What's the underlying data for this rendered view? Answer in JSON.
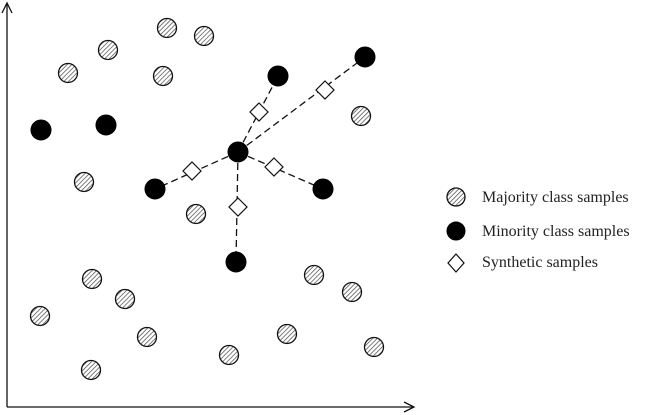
{
  "colors": {
    "ink": "#111111",
    "hatch": "#555555",
    "minority_fill": "#000000",
    "synthetic_fill": "#ffffff"
  },
  "legend": {
    "majority_label": "Majority class samples",
    "minority_label": "Minority class samples",
    "synthetic_label": "Synthetic samples"
  },
  "chart_data": {
    "type": "scatter",
    "title": "",
    "xlabel": "",
    "ylabel": "",
    "series": [
      {
        "name": "Majority class samples",
        "marker": "hatched-circle",
        "points": [
          [
            160,
            379
          ],
          [
            197,
            371
          ],
          [
            101,
            357
          ],
          [
            61,
            334
          ],
          [
            156,
            331
          ],
          [
            354,
            291
          ],
          [
            77,
            225
          ],
          [
            189,
            193
          ],
          [
            85,
            128
          ],
          [
            307,
            132
          ],
          [
            118,
            108
          ],
          [
            345,
            115
          ],
          [
            33,
            91
          ],
          [
            140,
            70
          ],
          [
            280,
            73
          ],
          [
            367,
            60
          ],
          [
            222,
            52
          ],
          [
            84,
            37
          ]
        ]
      },
      {
        "name": "Minority class samples",
        "marker": "filled-circle",
        "points": [
          [
            271,
            331
          ],
          [
            358,
            350
          ],
          [
            34,
            277
          ],
          [
            99,
            282
          ],
          [
            231,
            255
          ],
          [
            148,
            218
          ],
          [
            316,
            218
          ],
          [
            229,
            145
          ]
        ]
      },
      {
        "name": "Synthetic samples",
        "marker": "open-diamond",
        "points": [
          [
            252,
            295
          ],
          [
            318,
            317
          ],
          [
            185,
            236
          ],
          [
            267,
            240
          ],
          [
            231,
            200
          ]
        ]
      }
    ],
    "links": [
      [
        [
          231,
          255
        ],
        [
          271,
          331
        ]
      ],
      [
        [
          231,
          255
        ],
        [
          358,
          350
        ]
      ],
      [
        [
          231,
          255
        ],
        [
          148,
          218
        ]
      ],
      [
        [
          231,
          255
        ],
        [
          316,
          218
        ]
      ],
      [
        [
          231,
          255
        ],
        [
          229,
          145
        ]
      ]
    ],
    "xlim": [
      0,
      415
    ],
    "ylim": [
      0,
      415
    ],
    "grid": false,
    "legend_position": "right"
  }
}
